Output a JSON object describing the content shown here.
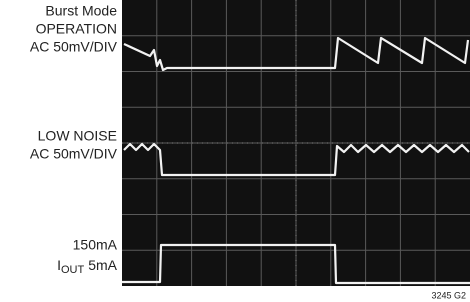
{
  "labels": {
    "trace1": [
      "Burst Mode",
      "OPERATION",
      "AC 50mV/DIV"
    ],
    "trace2": [
      "LOW NOISE",
      "AC 50mV/DIV"
    ],
    "trace3": {
      "line1": "150mA",
      "symbol": "I",
      "subscript": "OUT",
      "level": "5mA"
    }
  },
  "figure_id": "3245 G2"
}
